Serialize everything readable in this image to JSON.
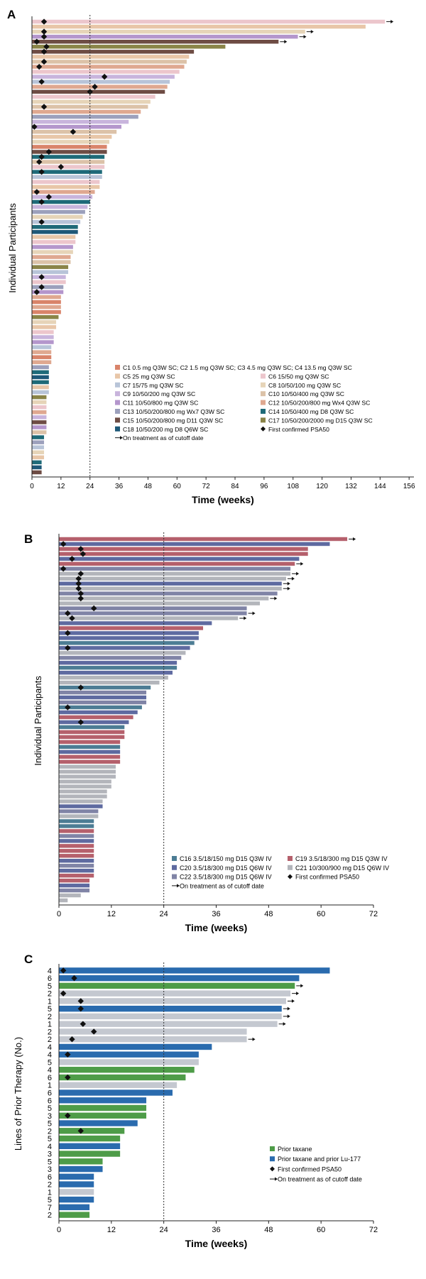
{
  "colors": {
    "C1": "#d9846a",
    "C2": "#d9846a",
    "C4": "#d9846a",
    "C5": "#e8c6a8",
    "C6": "#ecc6cc",
    "C7": "#b8c4d8",
    "C8": "#e6d4b8",
    "C9": "#c8b4dc",
    "C10": "#dcc2a8",
    "C11": "#b496cc",
    "C12": "#dfa890",
    "C13": "#9ca0bc",
    "C14": "#1e6a78",
    "C15": "#6e4c44",
    "C17": "#8a8448",
    "C18": "#1e5878",
    "C16": "#4c7c94",
    "C19": "#b5606c",
    "C20": "#5e6aa0",
    "C21": "#b3b5bb",
    "C22": "#8084a6",
    "taxane": "#4e9c48",
    "taxlu": "#2a6bae",
    "grey": "#c4c8d0"
  },
  "chart_data": [
    {
      "panel": "A",
      "type": "bar",
      "orientation": "horizontal",
      "ylabel": "Individual Participants",
      "xlabel": "Time (weeks)",
      "xlim": [
        0,
        158
      ],
      "xticks": [
        0,
        12,
        24,
        36,
        48,
        60,
        72,
        84,
        96,
        108,
        120,
        132,
        144,
        156
      ],
      "reference_line": 24,
      "legend": [
        {
          "key": "C1",
          "label": "C1 0.5 mg Q3W SC; C2 1.5 mg Q3W SC; C3 4.5 mg Q3W SC; C4 13.5 mg Q3W SC",
          "full": true
        },
        {
          "key": "C5",
          "label": "C5 25 mg Q3W SC"
        },
        {
          "key": "C6",
          "label": "C6 15/50 mg Q3W SC"
        },
        {
          "key": "C7",
          "label": "C7 15/75 mg Q3W SC"
        },
        {
          "key": "C8",
          "label": "C8 10/50/100 mg Q3W SC"
        },
        {
          "key": "C9",
          "label": "C9 10/50/200 mg Q3W SC"
        },
        {
          "key": "C10",
          "label": "C10 10/50/400 mg Q3W SC"
        },
        {
          "key": "C11",
          "label": "C11 10/50/800 mg Q3W SC"
        },
        {
          "key": "C12",
          "label": "C12 10/50/200/800 mg Wx4 Q3W SC"
        },
        {
          "key": "C13",
          "label": "C13 10/50/200/800 mg Wx7 Q3W SC"
        },
        {
          "key": "C14",
          "label": "C14 10/50/400 mg D8 Q3W SC"
        },
        {
          "key": "C15",
          "label": "C15 10/50/200/800 mg D11 Q3W SC"
        },
        {
          "key": "C17",
          "label": "C17 10/50/200/2000 mg D15 Q3W SC"
        },
        {
          "key": "C18",
          "label": "C18 10/50/200 mg D8 Q6W SC"
        },
        {
          "marker": "diamond",
          "label": "First confirmed PSA50"
        },
        {
          "marker": "arrow",
          "label": "On treatment as of cutoff date",
          "full": true
        }
      ],
      "bars": [
        {
          "v": 146,
          "c": "C6",
          "m": 5,
          "a": 1
        },
        {
          "v": 138,
          "c": "C5"
        },
        {
          "v": 113,
          "c": "C8",
          "m": 5,
          "a": 1
        },
        {
          "v": 110,
          "c": "C11",
          "m": 5,
          "a": 1
        },
        {
          "v": 102,
          "c": "C15",
          "m": 2,
          "a": 1
        },
        {
          "v": 80,
          "c": "C17",
          "m": 6
        },
        {
          "v": 67,
          "c": "C15",
          "m": 5
        },
        {
          "v": 65,
          "c": "C5"
        },
        {
          "v": 64,
          "c": "C10",
          "m": 5
        },
        {
          "v": 63,
          "c": "C12",
          "m": 3
        },
        {
          "v": 61,
          "c": "C6"
        },
        {
          "v": 59,
          "c": "C9",
          "m": 30
        },
        {
          "v": 57,
          "c": "C7",
          "m": 4
        },
        {
          "v": 56,
          "c": "C12",
          "m": 26
        },
        {
          "v": 55,
          "c": "C15",
          "m": 24
        },
        {
          "v": 51,
          "c": "C6"
        },
        {
          "v": 49,
          "c": "C8"
        },
        {
          "v": 48,
          "c": "C10",
          "m": 5
        },
        {
          "v": 45,
          "c": "C12"
        },
        {
          "v": 44,
          "c": "C13"
        },
        {
          "v": 40,
          "c": "C9"
        },
        {
          "v": 37,
          "c": "C11",
          "m": 1
        },
        {
          "v": 35,
          "c": "C10",
          "m": 17
        },
        {
          "v": 33,
          "c": "C5"
        },
        {
          "v": 32,
          "c": "C8"
        },
        {
          "v": 31,
          "c": "C1"
        },
        {
          "v": 31,
          "c": "C15",
          "m": 7
        },
        {
          "v": 30,
          "c": "C14",
          "m": 4
        },
        {
          "v": 30,
          "c": "C10",
          "m": 3
        },
        {
          "v": 30,
          "c": "C6",
          "m": 12
        },
        {
          "v": 29,
          "c": "C14",
          "m": 4
        },
        {
          "v": 29,
          "c": "C7"
        },
        {
          "v": 28,
          "c": "C6"
        },
        {
          "v": 28,
          "c": "C5"
        },
        {
          "v": 26,
          "c": "C12",
          "m": 2
        },
        {
          "v": 25,
          "c": "C9",
          "m": 7
        },
        {
          "v": 24,
          "c": "C14",
          "m": 4
        },
        {
          "v": 23,
          "c": "C9"
        },
        {
          "v": 22,
          "c": "C13"
        },
        {
          "v": 21,
          "c": "C8"
        },
        {
          "v": 20,
          "c": "C7",
          "m": 4
        },
        {
          "v": 19,
          "c": "C14"
        },
        {
          "v": 19,
          "c": "C18"
        },
        {
          "v": 18,
          "c": "C5"
        },
        {
          "v": 18,
          "c": "C6"
        },
        {
          "v": 17,
          "c": "C11"
        },
        {
          "v": 17,
          "c": "C8"
        },
        {
          "v": 16,
          "c": "C12"
        },
        {
          "v": 16,
          "c": "C10"
        },
        {
          "v": 15,
          "c": "C17"
        },
        {
          "v": 15,
          "c": "C7"
        },
        {
          "v": 14,
          "c": "C9",
          "m": 4
        },
        {
          "v": 14,
          "c": "C6"
        },
        {
          "v": 13,
          "c": "C13",
          "m": 4
        },
        {
          "v": 13,
          "c": "C11",
          "m": 2
        },
        {
          "v": 12,
          "c": "C12"
        },
        {
          "v": 12,
          "c": "C1"
        },
        {
          "v": 12,
          "c": "C12"
        },
        {
          "v": 12,
          "c": "C1"
        },
        {
          "v": 11,
          "c": "C17"
        },
        {
          "v": 10,
          "c": "C8"
        },
        {
          "v": 10,
          "c": "C5"
        },
        {
          "v": 9,
          "c": "C6"
        },
        {
          "v": 9,
          "c": "C9"
        },
        {
          "v": 9,
          "c": "C11"
        },
        {
          "v": 8,
          "c": "C7"
        },
        {
          "v": 8,
          "c": "C12"
        },
        {
          "v": 8,
          "c": "C1"
        },
        {
          "v": 8,
          "c": "C12"
        },
        {
          "v": 7,
          "c": "C13"
        },
        {
          "v": 7,
          "c": "C14"
        },
        {
          "v": 7,
          "c": "C18"
        },
        {
          "v": 7,
          "c": "C14"
        },
        {
          "v": 7,
          "c": "C5"
        },
        {
          "v": 7,
          "c": "C7"
        },
        {
          "v": 6,
          "c": "C17"
        },
        {
          "v": 6,
          "c": "C8"
        },
        {
          "v": 6,
          "c": "C6"
        },
        {
          "v": 6,
          "c": "C12"
        },
        {
          "v": 6,
          "c": "C9"
        },
        {
          "v": 6,
          "c": "C15"
        },
        {
          "v": 6,
          "c": "C11"
        },
        {
          "v": 6,
          "c": "C10"
        },
        {
          "v": 5,
          "c": "C14"
        },
        {
          "v": 5,
          "c": "C13"
        },
        {
          "v": 5,
          "c": "C7"
        },
        {
          "v": 5,
          "c": "C8"
        },
        {
          "v": 5,
          "c": "C5"
        },
        {
          "v": 4,
          "c": "C14"
        },
        {
          "v": 4,
          "c": "C18"
        },
        {
          "v": 4,
          "c": "C15"
        }
      ]
    },
    {
      "panel": "B",
      "type": "bar",
      "orientation": "horizontal",
      "ylabel": "Individual Participants",
      "xlabel": "Time (weeks)",
      "xlim": [
        0,
        72
      ],
      "xticks": [
        0,
        12,
        24,
        36,
        48,
        60,
        72
      ],
      "reference_line": 24,
      "legend": [
        {
          "key": "C16",
          "label": "C16 3.5/18/150 mg D15 Q3W IV"
        },
        {
          "key": "C19",
          "label": "C19 3.5/18/300 mg D15 Q3W IV"
        },
        {
          "key": "C20",
          "label": "C20 3.5/18/300 mg D15 Q6W IV"
        },
        {
          "key": "C21",
          "label": "C21 10/300/900 mg D15 Q6W IV"
        },
        {
          "key": "C22",
          "label": "C22 3.5/18/300 mg D15 Q6W IV"
        },
        {
          "marker": "diamond",
          "label": "First confirmed PSA50"
        },
        {
          "marker": "arrow",
          "label": "On treatment as of cutoff date"
        }
      ],
      "bars": [
        {
          "v": 66,
          "c": "C19",
          "a": 1
        },
        {
          "v": 62,
          "c": "C20",
          "m": 1
        },
        {
          "v": 57,
          "c": "C19",
          "m": 5
        },
        {
          "v": 57,
          "c": "C19",
          "m": 5.5
        },
        {
          "v": 55,
          "c": "C20",
          "m": 3
        },
        {
          "v": 54,
          "c": "C19",
          "a": 1
        },
        {
          "v": 53,
          "c": "C22",
          "m": 1
        },
        {
          "v": 53,
          "c": "C21",
          "m": 5,
          "a": 1
        },
        {
          "v": 52,
          "c": "C21",
          "m": 4.5,
          "a": 1
        },
        {
          "v": 51,
          "c": "C20",
          "m": 4.5,
          "a": 1
        },
        {
          "v": 51,
          "c": "C21",
          "m": 4.5,
          "a": 1
        },
        {
          "v": 50,
          "c": "C22",
          "m": 5
        },
        {
          "v": 48,
          "c": "C21",
          "m": 5,
          "a": 1
        },
        {
          "v": 46,
          "c": "C21"
        },
        {
          "v": 43,
          "c": "C22",
          "m": 8
        },
        {
          "v": 43,
          "c": "C22",
          "m": 2,
          "a": 1
        },
        {
          "v": 41,
          "c": "C21",
          "m": 3,
          "a": 1
        },
        {
          "v": 35,
          "c": "C20"
        },
        {
          "v": 33,
          "c": "C19"
        },
        {
          "v": 32,
          "c": "C20",
          "m": 2
        },
        {
          "v": 32,
          "c": "C20"
        },
        {
          "v": 31,
          "c": "C16"
        },
        {
          "v": 30,
          "c": "C20",
          "m": 2
        },
        {
          "v": 29,
          "c": "C21"
        },
        {
          "v": 28,
          "c": "C22"
        },
        {
          "v": 27,
          "c": "C20"
        },
        {
          "v": 27,
          "c": "C16"
        },
        {
          "v": 26,
          "c": "C20"
        },
        {
          "v": 25,
          "c": "C21"
        },
        {
          "v": 23,
          "c": "C21"
        },
        {
          "v": 21,
          "c": "C16",
          "m": 5
        },
        {
          "v": 20,
          "c": "C22"
        },
        {
          "v": 20,
          "c": "C20"
        },
        {
          "v": 20,
          "c": "C22"
        },
        {
          "v": 19,
          "c": "C16",
          "m": 2
        },
        {
          "v": 18,
          "c": "C20"
        },
        {
          "v": 17,
          "c": "C19"
        },
        {
          "v": 16,
          "c": "C20",
          "m": 5
        },
        {
          "v": 15,
          "c": "C16"
        },
        {
          "v": 15,
          "c": "C19"
        },
        {
          "v": 15,
          "c": "C19"
        },
        {
          "v": 14,
          "c": "C19"
        },
        {
          "v": 14,
          "c": "C16"
        },
        {
          "v": 14,
          "c": "C20"
        },
        {
          "v": 14,
          "c": "C19"
        },
        {
          "v": 14,
          "c": "C19"
        },
        {
          "v": 13,
          "c": "C21"
        },
        {
          "v": 13,
          "c": "C21"
        },
        {
          "v": 13,
          "c": "C21"
        },
        {
          "v": 12,
          "c": "C21"
        },
        {
          "v": 12,
          "c": "C21"
        },
        {
          "v": 11,
          "c": "C21"
        },
        {
          "v": 11,
          "c": "C21"
        },
        {
          "v": 10,
          "c": "C21"
        },
        {
          "v": 10,
          "c": "C20"
        },
        {
          "v": 9,
          "c": "C22"
        },
        {
          "v": 9,
          "c": "C21"
        },
        {
          "v": 8,
          "c": "C16"
        },
        {
          "v": 8,
          "c": "C16"
        },
        {
          "v": 8,
          "c": "C19"
        },
        {
          "v": 8,
          "c": "C22"
        },
        {
          "v": 8,
          "c": "C20"
        },
        {
          "v": 8,
          "c": "C19"
        },
        {
          "v": 8,
          "c": "C19"
        },
        {
          "v": 8,
          "c": "C19"
        },
        {
          "v": 8,
          "c": "C20"
        },
        {
          "v": 8,
          "c": "C22"
        },
        {
          "v": 8,
          "c": "C20"
        },
        {
          "v": 8,
          "c": "C19"
        },
        {
          "v": 7,
          "c": "C19"
        },
        {
          "v": 7,
          "c": "C20"
        },
        {
          "v": 7,
          "c": "C22"
        },
        {
          "v": 5,
          "c": "C21"
        },
        {
          "v": 2,
          "c": "C21"
        }
      ]
    },
    {
      "panel": "C",
      "type": "bar",
      "orientation": "horizontal",
      "ylabel": "Lines of Prior Therapy (No.)",
      "xlabel": "Time (weeks)",
      "xlim": [
        0,
        72
      ],
      "xticks": [
        0,
        12,
        24,
        36,
        48,
        60,
        72
      ],
      "reference_line": 24,
      "legend": [
        {
          "key": "taxane",
          "label": "Prior taxane"
        },
        {
          "key": "taxlu",
          "label": "Prior taxane and prior Lu-177"
        },
        {
          "marker": "diamond",
          "label": "First confirmed PSA50"
        },
        {
          "marker": "arrow",
          "label": "On treatment as of cutoff date"
        }
      ],
      "bars": [
        {
          "n": "4",
          "v": 62,
          "c": "taxlu",
          "m": 1
        },
        {
          "n": "6",
          "v": 55,
          "c": "taxlu",
          "m": 3.5
        },
        {
          "n": "5",
          "v": 54,
          "c": "taxane",
          "a": 1
        },
        {
          "n": "2",
          "v": 53,
          "c": "grey",
          "m": 1,
          "a": 1
        },
        {
          "n": "1",
          "v": 52,
          "c": "grey",
          "m": 5,
          "a": 1
        },
        {
          "n": "5",
          "v": 51,
          "c": "taxlu",
          "m": 5,
          "a": 1
        },
        {
          "n": "2",
          "v": 51,
          "c": "grey",
          "a": 1
        },
        {
          "n": "1",
          "v": 50,
          "c": "grey",
          "m": 5.5,
          "a": 1
        },
        {
          "n": "2",
          "v": 43,
          "c": "grey",
          "m": 8
        },
        {
          "n": "2",
          "v": 43,
          "c": "grey",
          "m": 3,
          "a": 1
        },
        {
          "n": "4",
          "v": 35,
          "c": "taxlu"
        },
        {
          "n": "4",
          "v": 32,
          "c": "taxlu",
          "m": 2
        },
        {
          "n": "5",
          "v": 32,
          "c": "grey"
        },
        {
          "n": "4",
          "v": 31,
          "c": "taxane"
        },
        {
          "n": "6",
          "v": 29,
          "c": "taxane",
          "m": 2
        },
        {
          "n": "1",
          "v": 27,
          "c": "grey"
        },
        {
          "n": "6",
          "v": 26,
          "c": "taxlu"
        },
        {
          "n": "6",
          "v": 20,
          "c": "taxlu"
        },
        {
          "n": "5",
          "v": 20,
          "c": "taxane"
        },
        {
          "n": "3",
          "v": 20,
          "c": "taxane",
          "m": 2
        },
        {
          "n": "5",
          "v": 18,
          "c": "taxlu"
        },
        {
          "n": "2",
          "v": 15,
          "c": "taxane",
          "m": 5
        },
        {
          "n": "5",
          "v": 14,
          "c": "taxane"
        },
        {
          "n": "4",
          "v": 14,
          "c": "taxlu"
        },
        {
          "n": "3",
          "v": 14,
          "c": "taxane"
        },
        {
          "n": "5",
          "v": 10,
          "c": "taxane"
        },
        {
          "n": "3",
          "v": 10,
          "c": "taxlu"
        },
        {
          "n": "6",
          "v": 8,
          "c": "taxlu"
        },
        {
          "n": "2",
          "v": 8,
          "c": "taxlu"
        },
        {
          "n": "1",
          "v": 8,
          "c": "grey"
        },
        {
          "n": "5",
          "v": 8,
          "c": "taxlu"
        },
        {
          "n": "7",
          "v": 7,
          "c": "taxlu"
        },
        {
          "n": "2",
          "v": 7,
          "c": "taxane"
        }
      ]
    }
  ]
}
